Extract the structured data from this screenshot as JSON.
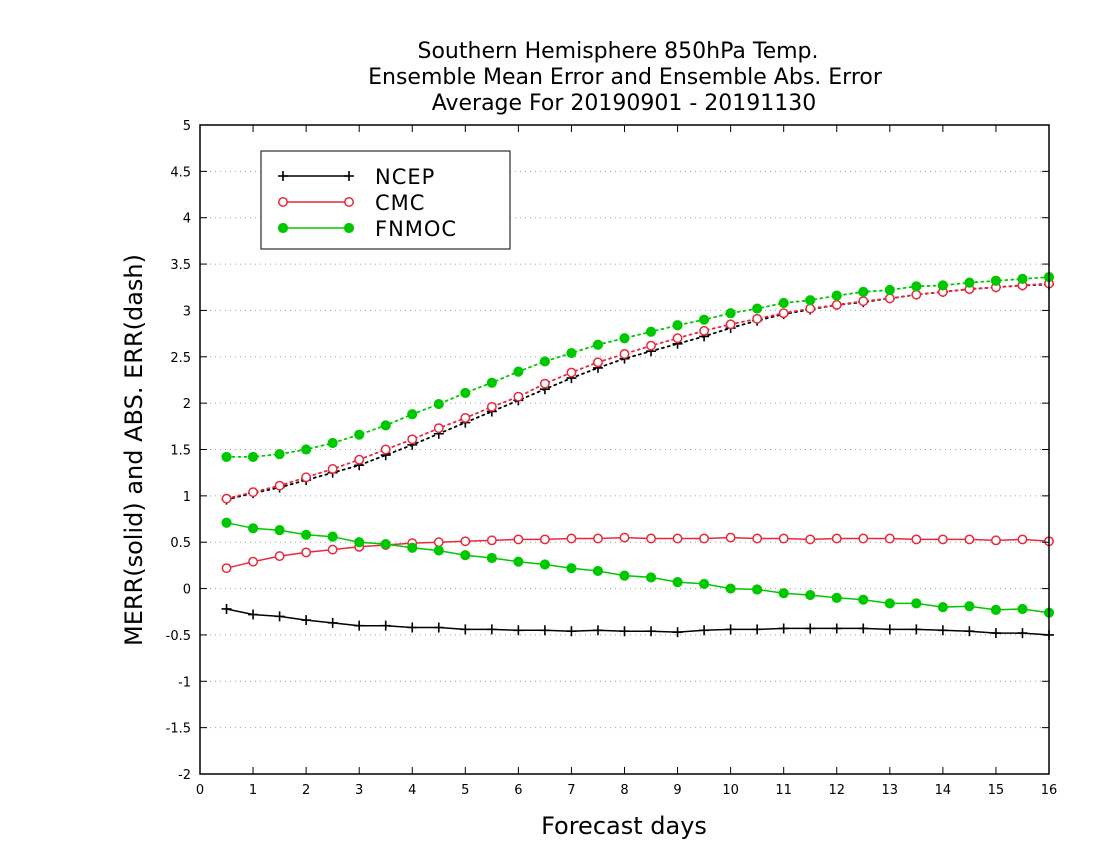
{
  "chart_data": {
    "type": "line",
    "title_lines": [
      "Southern Hemisphere 850hPa Temp.",
      "Ensemble Mean Error and Ensemble Abs. Error",
      "Average For 20190901 - 20191130"
    ],
    "xlabel": "Forecast days",
    "ylabel": "MERR(solid) and ABS. ERR(dash)",
    "xlim": [
      0,
      16
    ],
    "ylim": [
      -2,
      5
    ],
    "x_ticks": [
      "0",
      "1",
      "2",
      "3",
      "4",
      "5",
      "6",
      "7",
      "8",
      "9",
      "10",
      "11",
      "12",
      "13",
      "14",
      "15",
      "16"
    ],
    "y_ticks": [
      "-2",
      "-1.5",
      "-1",
      "-0.5",
      "0",
      "0.5",
      "1",
      "1.5",
      "2",
      "2.5",
      "3",
      "3.5",
      "4",
      "4.5",
      "5"
    ],
    "x_tick_values": [
      0,
      1,
      2,
      3,
      4,
      5,
      6,
      7,
      8,
      9,
      10,
      11,
      12,
      13,
      14,
      15,
      16
    ],
    "y_tick_values": [
      -2,
      -1.5,
      -1,
      -0.5,
      0,
      0.5,
      1,
      1.5,
      2,
      2.5,
      3,
      3.5,
      4,
      4.5,
      5
    ],
    "grid": "horizontal dotted",
    "legend_position": "top-left",
    "x": [
      0.5,
      1,
      1.5,
      2,
      2.5,
      3,
      3.5,
      4,
      4.5,
      5,
      5.5,
      6,
      6.5,
      7,
      7.5,
      8,
      8.5,
      9,
      9.5,
      10,
      10.5,
      11,
      11.5,
      12,
      12.5,
      13,
      13.5,
      14,
      14.5,
      15,
      15.5,
      16
    ],
    "series": [
      {
        "name": "NCEP",
        "color": "#000000",
        "marker": "plus",
        "merr": [
          -0.22,
          -0.28,
          -0.3,
          -0.34,
          -0.37,
          -0.4,
          -0.4,
          -0.42,
          -0.42,
          -0.44,
          -0.44,
          -0.45,
          -0.45,
          -0.46,
          -0.45,
          -0.46,
          -0.46,
          -0.47,
          -0.45,
          -0.44,
          -0.44,
          -0.43,
          -0.43,
          -0.43,
          -0.43,
          -0.44,
          -0.44,
          -0.45,
          -0.46,
          -0.48,
          -0.48,
          -0.5
        ],
        "abs_err": [
          0.96,
          1.03,
          1.09,
          1.17,
          1.25,
          1.33,
          1.44,
          1.55,
          1.67,
          1.79,
          1.91,
          2.03,
          2.15,
          2.27,
          2.38,
          2.48,
          2.56,
          2.64,
          2.72,
          2.81,
          2.89,
          2.96,
          3.01,
          3.06,
          3.09,
          3.13,
          3.17,
          3.2,
          3.23,
          3.25,
          3.27,
          3.28
        ]
      },
      {
        "name": "CMC",
        "color": "#e8283c",
        "marker": "open-circle",
        "merr": [
          0.22,
          0.29,
          0.35,
          0.39,
          0.42,
          0.45,
          0.47,
          0.49,
          0.5,
          0.51,
          0.52,
          0.53,
          0.53,
          0.54,
          0.54,
          0.55,
          0.54,
          0.54,
          0.54,
          0.55,
          0.54,
          0.54,
          0.53,
          0.54,
          0.54,
          0.54,
          0.53,
          0.53,
          0.53,
          0.52,
          0.53,
          0.51
        ],
        "abs_err": [
          0.97,
          1.04,
          1.11,
          1.2,
          1.29,
          1.39,
          1.5,
          1.61,
          1.73,
          1.84,
          1.96,
          2.07,
          2.21,
          2.33,
          2.44,
          2.53,
          2.62,
          2.7,
          2.78,
          2.85,
          2.91,
          2.97,
          3.02,
          3.06,
          3.1,
          3.13,
          3.17,
          3.2,
          3.23,
          3.25,
          3.27,
          3.29
        ]
      },
      {
        "name": "FNMOC",
        "color": "#00c800",
        "marker": "filled-circle",
        "merr": [
          0.71,
          0.65,
          0.63,
          0.58,
          0.56,
          0.5,
          0.48,
          0.44,
          0.41,
          0.36,
          0.33,
          0.29,
          0.26,
          0.22,
          0.19,
          0.14,
          0.12,
          0.07,
          0.05,
          0.0,
          -0.01,
          -0.05,
          -0.07,
          -0.1,
          -0.12,
          -0.16,
          -0.16,
          -0.2,
          -0.19,
          -0.23,
          -0.22,
          -0.26
        ],
        "abs_err": [
          1.42,
          1.42,
          1.45,
          1.5,
          1.57,
          1.66,
          1.76,
          1.88,
          1.99,
          2.11,
          2.22,
          2.34,
          2.45,
          2.54,
          2.63,
          2.7,
          2.77,
          2.84,
          2.9,
          2.97,
          3.02,
          3.08,
          3.11,
          3.16,
          3.2,
          3.22,
          3.26,
          3.27,
          3.3,
          3.32,
          3.34,
          3.36
        ]
      }
    ]
  }
}
